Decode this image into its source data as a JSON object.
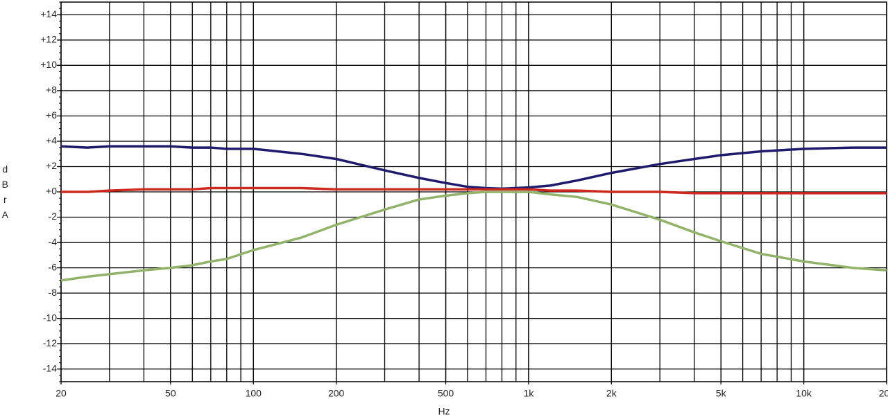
{
  "chart_data": {
    "type": "line",
    "x_label": "Hz",
    "y_label": "dBrA",
    "log_x": true,
    "grid": true,
    "xlim": [
      20,
      20000
    ],
    "ylim": [
      -15,
      15
    ],
    "xticks": [
      20,
      50,
      100,
      200,
      500,
      {
        "value": 1000,
        "label": "1k"
      },
      {
        "value": 2000,
        "label": "2k"
      },
      {
        "value": 5000,
        "label": "5k"
      },
      {
        "value": 10000,
        "label": "10k"
      },
      {
        "value": 20000,
        "label": "20k"
      }
    ],
    "yticks": [
      {
        "value": 14,
        "label": "+14"
      },
      {
        "value": 12,
        "label": "+12"
      },
      {
        "value": 10,
        "label": "+10"
      },
      {
        "value": 8,
        "label": "+8"
      },
      {
        "value": 6,
        "label": "+6"
      },
      {
        "value": 4,
        "label": "+4"
      },
      {
        "value": 2,
        "label": "+2"
      },
      {
        "value": 0,
        "label": "+0"
      },
      -2,
      -4,
      -6,
      -8,
      -10,
      -12,
      -14
    ],
    "x": [
      20,
      25,
      30,
      40,
      50,
      60,
      70,
      80,
      100,
      150,
      200,
      300,
      400,
      500,
      600,
      700,
      800,
      1000,
      1200,
      1500,
      2000,
      3000,
      4000,
      5000,
      7000,
      10000,
      15000,
      20000
    ],
    "series": [
      {
        "color": "#1f1a6b",
        "values": [
          3.6,
          3.5,
          3.6,
          3.6,
          3.6,
          3.5,
          3.5,
          3.4,
          3.4,
          3.0,
          2.6,
          1.7,
          1.1,
          0.7,
          0.4,
          0.3,
          0.25,
          0.35,
          0.5,
          0.9,
          1.5,
          2.2,
          2.6,
          2.9,
          3.2,
          3.4,
          3.5,
          3.5
        ]
      },
      {
        "color": "#cc2a1e",
        "values": [
          0,
          0,
          0.1,
          0.2,
          0.2,
          0.2,
          0.3,
          0.3,
          0.3,
          0.3,
          0.2,
          0.2,
          0.2,
          0.2,
          0.2,
          0.2,
          0.2,
          0.2,
          0.1,
          0.1,
          0,
          0,
          -0.1,
          -0.1,
          -0.1,
          -0.1,
          -0.1,
          -0.1
        ]
      },
      {
        "color": "#93b36b",
        "values": [
          -7.0,
          -6.7,
          -6.5,
          -6.2,
          -6.0,
          -5.8,
          -5.5,
          -5.3,
          -4.6,
          -3.6,
          -2.6,
          -1.4,
          -0.6,
          -0.3,
          -0.1,
          0,
          0,
          0,
          -0.2,
          -0.4,
          -1.0,
          -2.2,
          -3.2,
          -3.9,
          -4.9,
          -5.5,
          -6.0,
          -6.2
        ]
      }
    ]
  }
}
